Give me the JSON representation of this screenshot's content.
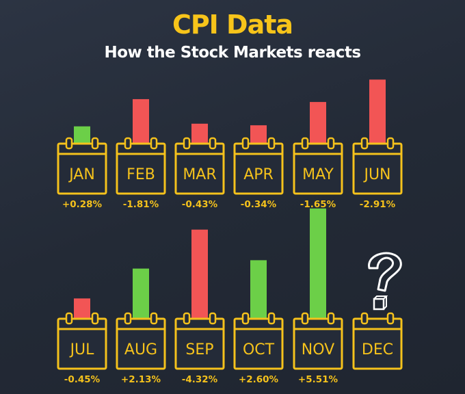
{
  "title": "CPI Data",
  "subtitle": "How the Stock Markets reacts",
  "colors": {
    "positive": "#6ccf48",
    "negative": "#f25555",
    "calendar": "#f5c21c",
    "background": "#252c39"
  },
  "chart_data": {
    "type": "bar",
    "title": "CPI Data",
    "subtitle": "How the Stock Markets reacts",
    "categories": [
      "JAN",
      "FEB",
      "MAR",
      "APR",
      "MAY",
      "JUN",
      "JUL",
      "AUG",
      "SEP",
      "OCT",
      "NOV",
      "DEC"
    ],
    "values": [
      0.28,
      -1.81,
      -0.43,
      -0.34,
      -1.65,
      -2.91,
      -0.45,
      2.13,
      -4.32,
      2.6,
      5.51,
      null
    ],
    "labels": [
      "+0.28%",
      "-1.81%",
      "-0.43%",
      "-0.34%",
      "-1.65%",
      "-2.91%",
      "-0.45%",
      "+2.13%",
      "-4.32%",
      "+2.60%",
      "+5.51%",
      ""
    ],
    "unknown_marker": {
      "month": "DEC",
      "icon": "question-mark-icon"
    }
  }
}
